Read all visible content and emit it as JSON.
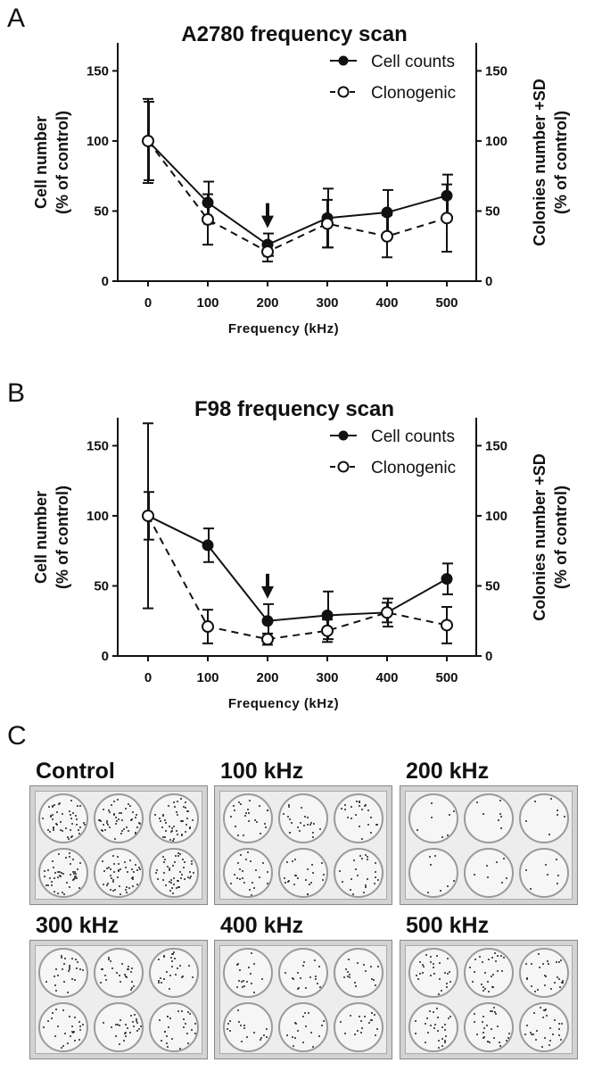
{
  "panels": {
    "a": "A",
    "b": "B",
    "c": "C"
  },
  "chart_data": [
    {
      "type": "line",
      "title": "A2780 frequency scan",
      "xlabel": "Frequency (kHz)",
      "ylabel_left": [
        "Cell number",
        "(% of control)"
      ],
      "ylabel_right": [
        "Colonies number +SD",
        "(% of control)"
      ],
      "x": [
        0,
        100,
        200,
        300,
        400,
        500
      ],
      "xticks": [
        "0",
        "100",
        "200",
        "300",
        "400",
        "500"
      ],
      "yticks": [
        "0",
        "50",
        "100",
        "150"
      ],
      "ylim": [
        0,
        170
      ],
      "arrow_at_x": 200,
      "series": [
        {
          "name": "Cell counts",
          "style": "solid-filled",
          "values": [
            100,
            56,
            26,
            45,
            49,
            61
          ],
          "err": [
            28,
            15,
            8,
            21,
            16,
            15
          ]
        },
        {
          "name": "Clonogenic",
          "style": "dashed-open",
          "values": [
            100,
            44,
            21,
            41,
            32,
            45
          ],
          "err": [
            30,
            18,
            7,
            17,
            15,
            24
          ]
        }
      ]
    },
    {
      "type": "line",
      "title": "F98 frequency scan",
      "xlabel": "Frequency (kHz)",
      "ylabel_left": [
        "Cell number",
        "(% of control)"
      ],
      "ylabel_right": [
        "Colonies number +SD",
        "(% of control)"
      ],
      "x": [
        0,
        100,
        200,
        300,
        400,
        500
      ],
      "xticks": [
        "0",
        "100",
        "200",
        "300",
        "400",
        "500"
      ],
      "yticks": [
        "0",
        "50",
        "100",
        "150"
      ],
      "ylim": [
        0,
        170
      ],
      "arrow_at_x": 200,
      "series": [
        {
          "name": "Cell counts",
          "style": "solid-filled",
          "values": [
            100,
            79,
            25,
            29,
            31,
            55
          ],
          "err": [
            17,
            12,
            12,
            17,
            10,
            11
          ]
        },
        {
          "name": "Clonogenic",
          "style": "dashed-open",
          "values": [
            100,
            21,
            12,
            18,
            31,
            22
          ],
          "err": [
            66,
            12,
            4,
            8,
            7,
            13
          ]
        }
      ]
    }
  ],
  "plates": [
    {
      "label": "Control",
      "density": 45
    },
    {
      "label": "100 kHz",
      "density": 22
    },
    {
      "label": "200 kHz",
      "density": 7
    },
    {
      "label": "300 kHz",
      "density": 25
    },
    {
      "label": "400 kHz",
      "density": 17
    },
    {
      "label": "500 kHz",
      "density": 26
    }
  ]
}
